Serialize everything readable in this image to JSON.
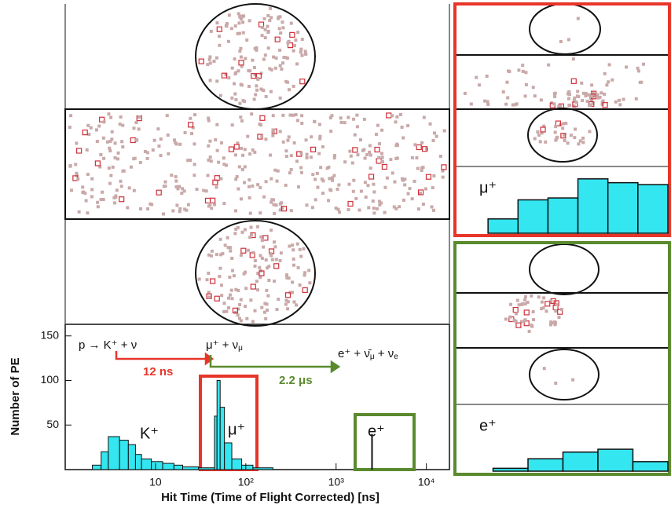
{
  "chart_data": {
    "type": "histogram",
    "xlabel": "Hit Time (Time of Flight Corrected) [ns]",
    "ylabel": "Number of PE",
    "xscale": "log",
    "xlim": [
      1,
      18000
    ],
    "ylim": [
      0,
      163
    ],
    "xticks": [
      10,
      {
        "value": 100,
        "label": "10²"
      },
      {
        "value": 1000,
        "label": "10³"
      },
      {
        "value": 10000,
        "label": "10⁴"
      }
    ],
    "yticks": [
      50,
      100,
      150
    ],
    "color": "#33e6f0",
    "bins": [
      2,
      2.5,
      3,
      4,
      5,
      6,
      7,
      9,
      12,
      16,
      20,
      30,
      45,
      48,
      52,
      58,
      70,
      90,
      120,
      200
    ],
    "values": [
      5,
      20,
      37,
      33,
      28,
      17,
      12,
      9,
      7,
      5,
      3,
      2,
      60,
      100,
      70,
      30,
      12,
      5,
      2
    ],
    "spike": {
      "x": 2500,
      "value": 40
    },
    "reactions": [
      [
        "p → K⁺ + ν"
      ],
      [
        "μ⁺ + ν",
        "μ"
      ],
      [
        "e⁺ + ν̄",
        "μ",
        " + ν",
        "e"
      ]
    ],
    "intervals": [
      "12 ns",
      "2.2 μs"
    ],
    "peak_labels": [
      "K⁺",
      "μ⁺",
      "e⁺"
    ],
    "insets": [
      {
        "label": "μ⁺",
        "color": "#e8352a",
        "values": [
          0,
          15,
          35,
          37,
          57,
          53,
          51
        ],
        "ylim": [
          0,
          70
        ]
      },
      {
        "label": "e⁺",
        "color": "#5a8a2e",
        "values": [
          0,
          3,
          13,
          20,
          23,
          10
        ],
        "ylim": [
          0,
          70
        ]
      }
    ]
  }
}
